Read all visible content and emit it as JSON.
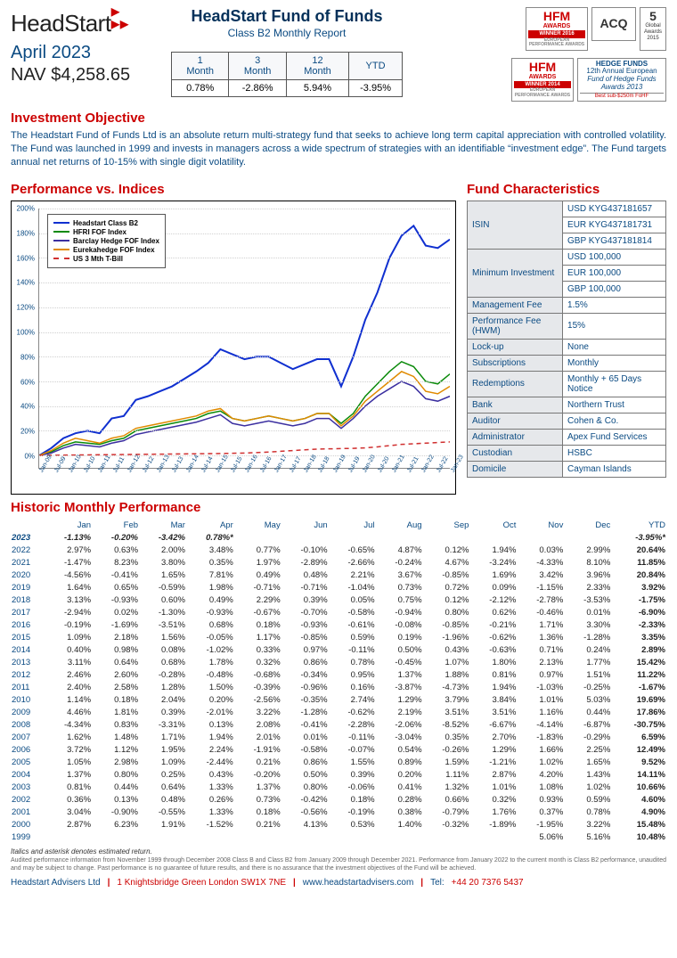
{
  "header": {
    "logo": "HeadStart",
    "date": "April 2023",
    "nav_label": "NAV",
    "nav_value": "$4,258.65",
    "fund_title": "HeadStart Fund of Funds",
    "fund_subtitle": "Class B2 Monthly Report"
  },
  "summary_table": {
    "headers": [
      "1 Month",
      "3 Month",
      "12 Month",
      "YTD"
    ],
    "values": [
      "0.78%",
      "-2.86%",
      "5.94%",
      "-3.95%"
    ]
  },
  "awards": {
    "hfm2016_top": "HFM",
    "hfm2016_mid": "AWARDS",
    "hfm2016_bar": "WINNER 2016",
    "hfm2016_sub": "EUROPEAN PERFORMANCE AWARDS",
    "acq": "ACQ",
    "glob5_num": "5",
    "glob5_lbl": "Global Awards 2015",
    "hfm2014_top": "HFM",
    "hfm2014_mid": "AWARDS",
    "hfm2014_bar": "WINNER 2014",
    "hfm2014_sub": "EUROPEAN PERFORMANCE AWARDS",
    "hfr_line1": "HEDGE FUNDS",
    "hfr_line2": "12th Annual European",
    "hfr_line3": "Fund of Hedge Funds",
    "hfr_line4": "Awards 2013",
    "hfr_line5": "Best sub-$250m FoHF"
  },
  "objective": {
    "title": "Investment Objective",
    "text": "The Headstart Fund of Funds Ltd is an absolute return multi-strategy fund that seeks to achieve long term capital appreciation with controlled volatility. The Fund was launched in 1999 and invests in managers across a wide spectrum of strategies with an identifiable “investment edge”. The Fund targets annual net returns of 10-15% with single digit volatility."
  },
  "chart": {
    "title": "Performance vs. Indices",
    "ylim": [
      -10,
      200
    ],
    "ytick_step": 20,
    "y_ticks": [
      "200%",
      "180%",
      "160%",
      "140%",
      "120%",
      "100%",
      "80%",
      "60%",
      "40%",
      "20%",
      "0%"
    ],
    "x_labels": [
      "Jan-09",
      "Jul-09",
      "Jan-10",
      "Jul-10",
      "Jan-11",
      "Jul-11",
      "Jan-12",
      "Jul-12",
      "Jan-13",
      "Jul-13",
      "Jan-14",
      "Jul-14",
      "Jan-15",
      "Jul-15",
      "Jan-16",
      "Jul-16",
      "Jan-17",
      "Jul-17",
      "Jan-18",
      "Jul-18",
      "Jan-19",
      "Jul-19",
      "Jan-20",
      "Jul-20",
      "Jan-21",
      "Jul-21",
      "Jan-22",
      "Jul-22",
      "Jan-23"
    ],
    "background_color": "#ffffff",
    "grid_color": "#d0d0d0",
    "series": [
      {
        "name": "Headstart Class B2",
        "color": "#1030d0",
        "dash": "",
        "width": 2,
        "values": [
          0,
          6,
          14,
          18,
          20,
          18,
          30,
          32,
          45,
          48,
          52,
          56,
          62,
          68,
          75,
          86,
          82,
          78,
          80,
          80,
          75,
          70,
          74,
          78,
          78,
          56,
          80,
          110,
          132,
          160,
          178,
          186,
          170,
          168,
          175
        ]
      },
      {
        "name": "HFRI FOF Index",
        "color": "#0a8a0a",
        "dash": "",
        "width": 1.5,
        "values": [
          0,
          3,
          8,
          11,
          10,
          9,
          12,
          14,
          20,
          22,
          24,
          26,
          28,
          30,
          34,
          36,
          30,
          28,
          30,
          32,
          30,
          28,
          30,
          34,
          34,
          26,
          34,
          48,
          58,
          68,
          76,
          72,
          60,
          58,
          66
        ]
      },
      {
        "name": "Barclay Hedge FOF Index",
        "color": "#3b2fa0",
        "dash": "",
        "width": 1.5,
        "values": [
          0,
          2,
          6,
          9,
          8,
          7,
          10,
          12,
          17,
          19,
          21,
          23,
          25,
          27,
          30,
          33,
          26,
          24,
          26,
          28,
          26,
          24,
          26,
          30,
          30,
          22,
          30,
          40,
          48,
          54,
          60,
          56,
          46,
          44,
          48
        ]
      },
      {
        "name": "Eurekahedge FOF Index",
        "color": "#e08a00",
        "dash": "",
        "width": 1.5,
        "values": [
          0,
          4,
          10,
          14,
          12,
          10,
          14,
          16,
          22,
          24,
          26,
          28,
          30,
          32,
          36,
          38,
          30,
          28,
          30,
          32,
          30,
          28,
          30,
          34,
          34,
          24,
          32,
          44,
          52,
          60,
          68,
          64,
          52,
          50,
          56
        ]
      },
      {
        "name": "US 3 Mth T-Bill",
        "color": "#d03030",
        "dash": "5,4",
        "width": 1.5,
        "values": [
          0,
          0.2,
          0.3,
          0.4,
          0.5,
          0.6,
          0.7,
          0.8,
          0.9,
          1,
          1.1,
          1.2,
          1.3,
          1.4,
          1.5,
          1.6,
          1.8,
          2,
          2.4,
          2.8,
          3.4,
          4,
          4.6,
          5.2,
          5.4,
          5.6,
          5.8,
          6.2,
          7,
          8,
          9,
          9.5,
          10,
          10.5,
          11
        ]
      }
    ]
  },
  "characteristics": {
    "title": "Fund Characteristics",
    "rows": [
      {
        "label": "ISIN",
        "value": "USD  KYG437181657\nEUR  KYG437181731\nGBP  KYG437181814"
      },
      {
        "label": "Minimum Investment",
        "value": "USD 100,000\nEUR 100,000\nGBP 100,000"
      },
      {
        "label": "Management Fee",
        "value": "1.5%"
      },
      {
        "label": "Performance Fee (HWM)",
        "value": "15%"
      },
      {
        "label": "Lock-up",
        "value": "None"
      },
      {
        "label": "Subscriptions",
        "value": "Monthly"
      },
      {
        "label": "Redemptions",
        "value": "Monthly + 65 Days Notice"
      },
      {
        "label": "Bank",
        "value": "Northern Trust"
      },
      {
        "label": "Auditor",
        "value": "Cohen & Co."
      },
      {
        "label": "Administrator",
        "value": "Apex Fund Services"
      },
      {
        "label": "Custodian",
        "value": "HSBC"
      },
      {
        "label": "Domicile",
        "value": "Cayman Islands"
      }
    ]
  },
  "historic": {
    "title": "Historic Monthly Performance",
    "columns": [
      "",
      "Jan",
      "Feb",
      "Mar",
      "Apr",
      "May",
      "Jun",
      "Jul",
      "Aug",
      "Sep",
      "Oct",
      "Nov",
      "Dec",
      "YTD"
    ],
    "rows": [
      {
        "year": "2023",
        "current": true,
        "vals": [
          "-1.13%",
          "-0.20%",
          "-3.42%",
          "0.78%*",
          "",
          "",
          "",
          "",
          "",
          "",
          "",
          "",
          "-3.95%*"
        ]
      },
      {
        "year": "2022",
        "vals": [
          "2.97%",
          "0.63%",
          "2.00%",
          "3.48%",
          "0.77%",
          "-0.10%",
          "-0.65%",
          "4.87%",
          "0.12%",
          "1.94%",
          "0.03%",
          "2.99%",
          "20.64%"
        ]
      },
      {
        "year": "2021",
        "vals": [
          "-1.47%",
          "8.23%",
          "3.80%",
          "0.35%",
          "1.97%",
          "-2.89%",
          "-2.66%",
          "-0.24%",
          "4.67%",
          "-3.24%",
          "-4.33%",
          "8.10%",
          "11.85%"
        ]
      },
      {
        "year": "2020",
        "vals": [
          "-4.56%",
          "-0.41%",
          "1.65%",
          "7.81%",
          "0.49%",
          "0.48%",
          "2.21%",
          "3.67%",
          "-0.85%",
          "1.69%",
          "3.42%",
          "3.96%",
          "20.84%"
        ]
      },
      {
        "year": "2019",
        "vals": [
          "1.64%",
          "0.65%",
          "-0.59%",
          "1.98%",
          "-0.71%",
          "-0.71%",
          "-1.04%",
          "0.73%",
          "0.72%",
          "0.09%",
          "-1.15%",
          "2.33%",
          "3.92%"
        ]
      },
      {
        "year": "2018",
        "vals": [
          "3.13%",
          "-0.93%",
          "0.60%",
          "0.49%",
          "2.29%",
          "0.39%",
          "0.05%",
          "0.75%",
          "0.12%",
          "-2.12%",
          "-2.78%",
          "-3.53%",
          "-1.75%"
        ]
      },
      {
        "year": "2017",
        "vals": [
          "-2.94%",
          "0.02%",
          "-1.30%",
          "-0.93%",
          "-0.67%",
          "-0.70%",
          "-0.58%",
          "-0.94%",
          "0.80%",
          "0.62%",
          "-0.46%",
          "0.01%",
          "-6.90%"
        ]
      },
      {
        "year": "2016",
        "vals": [
          "-0.19%",
          "-1.69%",
          "-3.51%",
          "0.68%",
          "0.18%",
          "-0.93%",
          "-0.61%",
          "-0.08%",
          "-0.85%",
          "-0.21%",
          "1.71%",
          "3.30%",
          "-2.33%"
        ]
      },
      {
        "year": "2015",
        "vals": [
          "1.09%",
          "2.18%",
          "1.56%",
          "-0.05%",
          "1.17%",
          "-0.85%",
          "0.59%",
          "0.19%",
          "-1.96%",
          "-0.62%",
          "1.36%",
          "-1.28%",
          "3.35%"
        ]
      },
      {
        "year": "2014",
        "vals": [
          "0.40%",
          "0.98%",
          "0.08%",
          "-1.02%",
          "0.33%",
          "0.97%",
          "-0.11%",
          "0.50%",
          "0.43%",
          "-0.63%",
          "0.71%",
          "0.24%",
          "2.89%"
        ]
      },
      {
        "year": "2013",
        "vals": [
          "3.11%",
          "0.64%",
          "0.68%",
          "1.78%",
          "0.32%",
          "0.86%",
          "0.78%",
          "-0.45%",
          "1.07%",
          "1.80%",
          "2.13%",
          "1.77%",
          "15.42%"
        ]
      },
      {
        "year": "2012",
        "vals": [
          "2.46%",
          "2.60%",
          "-0.28%",
          "-0.48%",
          "-0.68%",
          "-0.34%",
          "0.95%",
          "1.37%",
          "1.88%",
          "0.81%",
          "0.97%",
          "1.51%",
          "11.22%"
        ]
      },
      {
        "year": "2011",
        "vals": [
          "2.40%",
          "2.58%",
          "1.28%",
          "1.50%",
          "-0.39%",
          "-0.96%",
          "0.16%",
          "-3.87%",
          "-4.73%",
          "1.94%",
          "-1.03%",
          "-0.25%",
          "-1.67%"
        ]
      },
      {
        "year": "2010",
        "vals": [
          "1.14%",
          "0.18%",
          "2.04%",
          "0.20%",
          "-2.56%",
          "-0.35%",
          "2.74%",
          "1.29%",
          "3.79%",
          "3.84%",
          "1.01%",
          "5.03%",
          "19.69%"
        ]
      },
      {
        "year": "2009",
        "vals": [
          "4.46%",
          "1.81%",
          "0.39%",
          "-2.01%",
          "3.22%",
          "-1.28%",
          "-0.62%",
          "2.19%",
          "3.51%",
          "3.51%",
          "1.16%",
          "0.44%",
          "17.86%"
        ]
      },
      {
        "year": "2008",
        "vals": [
          "-4.34%",
          "0.83%",
          "-3.31%",
          "0.13%",
          "2.08%",
          "-0.41%",
          "-2.28%",
          "-2.06%",
          "-8.52%",
          "-6.67%",
          "-4.14%",
          "-6.87%",
          "-30.75%"
        ]
      },
      {
        "year": "2007",
        "vals": [
          "1.62%",
          "1.48%",
          "1.71%",
          "1.94%",
          "2.01%",
          "0.01%",
          "-0.11%",
          "-3.04%",
          "0.35%",
          "2.70%",
          "-1.83%",
          "-0.29%",
          "6.59%"
        ]
      },
      {
        "year": "2006",
        "vals": [
          "3.72%",
          "1.12%",
          "1.95%",
          "2.24%",
          "-1.91%",
          "-0.58%",
          "-0.07%",
          "0.54%",
          "-0.26%",
          "1.29%",
          "1.66%",
          "2.25%",
          "12.49%"
        ]
      },
      {
        "year": "2005",
        "vals": [
          "1.05%",
          "2.98%",
          "1.09%",
          "-2.44%",
          "0.21%",
          "0.86%",
          "1.55%",
          "0.89%",
          "1.59%",
          "-1.21%",
          "1.02%",
          "1.65%",
          "9.52%"
        ]
      },
      {
        "year": "2004",
        "vals": [
          "1.37%",
          "0.80%",
          "0.25%",
          "0.43%",
          "-0.20%",
          "0.50%",
          "0.39%",
          "0.20%",
          "1.11%",
          "2.87%",
          "4.20%",
          "1.43%",
          "14.11%"
        ]
      },
      {
        "year": "2003",
        "vals": [
          "0.81%",
          "0.44%",
          "0.64%",
          "1.33%",
          "1.37%",
          "0.80%",
          "-0.06%",
          "0.41%",
          "1.32%",
          "1.01%",
          "1.08%",
          "1.02%",
          "10.66%"
        ]
      },
      {
        "year": "2002",
        "vals": [
          "0.36%",
          "0.13%",
          "0.48%",
          "0.26%",
          "0.73%",
          "-0.42%",
          "0.18%",
          "0.28%",
          "0.66%",
          "0.32%",
          "0.93%",
          "0.59%",
          "4.60%"
        ]
      },
      {
        "year": "2001",
        "vals": [
          "3.04%",
          "-0.90%",
          "-0.55%",
          "1.33%",
          "0.18%",
          "-0.56%",
          "-0.19%",
          "0.38%",
          "-0.79%",
          "1.76%",
          "0.37%",
          "0.78%",
          "4.90%"
        ]
      },
      {
        "year": "2000",
        "vals": [
          "2.87%",
          "6.23%",
          "1.91%",
          "-1.52%",
          "0.21%",
          "4.13%",
          "0.53%",
          "1.40%",
          "-0.32%",
          "-1.89%",
          "-1.95%",
          "3.22%",
          "15.48%"
        ]
      },
      {
        "year": "1999",
        "vals": [
          "",
          "",
          "",
          "",
          "",
          "",
          "",
          "",
          "",
          "",
          "5.06%",
          "5.16%",
          "10.48%"
        ]
      }
    ],
    "footnote": "Italics and asterisk denotes estimated return."
  },
  "disclaimer": "Audited performance information from November 1999 through December 2008 Class B and Class B2 from January 2009 through December 2021. Performance from January 2022 to the current month is Class B2 performance, unaudited and may be subject to change. Past performance is no guarantee of future results, and there is no assurance that the investment objectives of the Fund will be achieved.",
  "footer": {
    "company": "Headstart Advisers Ltd",
    "address": "1 Knightsbridge Green London SW1X 7NE",
    "website": "www.headstartadvisers.com",
    "tel_label": "Tel:",
    "tel": "+44 20 7376 5437"
  }
}
